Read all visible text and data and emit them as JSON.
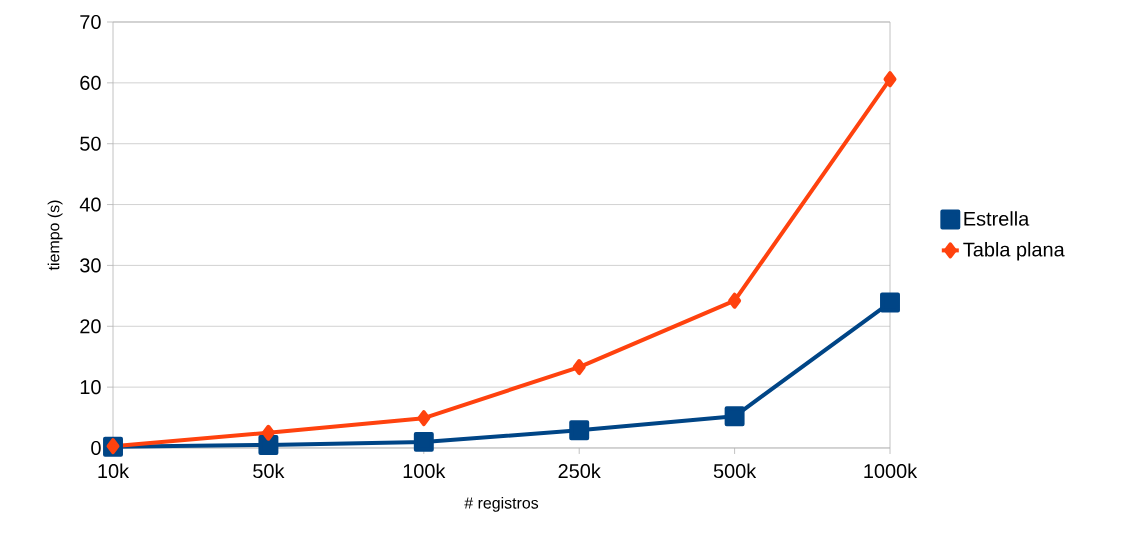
{
  "chart_data": {
    "type": "line",
    "xlabel": "# registros",
    "ylabel": "tiempo (s)",
    "categories": [
      "10k",
      "50k",
      "100k",
      "250k",
      "500k",
      "1000k"
    ],
    "series": [
      {
        "name": "Estrella",
        "color": "#004586",
        "marker": "square",
        "values": [
          0.2,
          0.5,
          1.0,
          2.9,
          5.2,
          23.9
        ]
      },
      {
        "name": "Tabla plana",
        "color": "#ff420e",
        "marker": "diamond",
        "values": [
          0.3,
          2.5,
          4.9,
          13.3,
          24.2,
          60.6
        ]
      }
    ],
    "ylim": [
      0,
      70
    ],
    "yticks": [
      0,
      10,
      20,
      30,
      40,
      50,
      60,
      70
    ],
    "grid": "y",
    "legend": "right"
  }
}
